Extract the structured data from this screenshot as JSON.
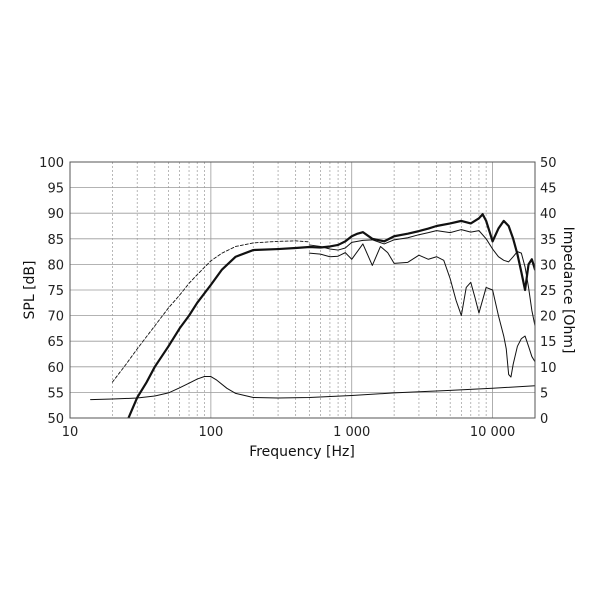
{
  "chart_data": {
    "type": "line",
    "xlabel": "Frequency [Hz]",
    "ylabel": "SPL [dB]",
    "y2label": "Impedance [Ohm]",
    "x_scale": "log",
    "xlim": [
      10,
      20000
    ],
    "ylim": [
      50,
      100
    ],
    "y2lim": [
      0,
      50
    ],
    "grid": true,
    "x_ticks": [
      {
        "value": 10,
        "label": "10"
      },
      {
        "value": 100,
        "label": "100"
      },
      {
        "value": 1000,
        "label": "1 000"
      },
      {
        "value": 10000,
        "label": "10 000"
      }
    ],
    "y_ticks": [
      "50",
      "55",
      "60",
      "65",
      "70",
      "75",
      "80",
      "85",
      "90",
      "95",
      "100"
    ],
    "y2_ticks": [
      "0",
      "5",
      "10",
      "15",
      "20",
      "25",
      "30",
      "35",
      "40",
      "45",
      "50"
    ],
    "series": [
      {
        "style": "dashed",
        "axis": "left",
        "x": [
          20,
          25,
          30,
          40,
          50,
          60,
          70,
          80,
          100,
          120,
          150,
          200,
          300,
          400,
          500
        ],
        "y": [
          57,
          60.5,
          63.5,
          68,
          71.5,
          74,
          76.3,
          78,
          80.7,
          82.2,
          83.5,
          84.2,
          84.5,
          84.6,
          84.4
        ]
      },
      {
        "style": "bold",
        "axis": "left",
        "x": [
          26,
          30,
          35,
          40,
          50,
          60,
          70,
          80,
          100,
          120,
          150,
          200,
          300,
          400,
          500,
          600,
          700,
          800,
          900,
          1000,
          1100,
          1200,
          1400,
          1700,
          2000,
          2500,
          3000,
          3500,
          4000,
          5000,
          6000,
          7000,
          8000,
          8500,
          9000,
          10000,
          11000,
          12000,
          13000,
          14000,
          15000,
          16000,
          17000,
          18000,
          19000,
          20000
        ],
        "y": [
          50,
          54,
          57,
          60,
          64,
          67.5,
          70,
          72.5,
          76,
          79,
          81.5,
          82.8,
          83,
          83.2,
          83.4,
          83.3,
          83.5,
          83.8,
          84.5,
          85.5,
          86,
          86.3,
          85,
          84.5,
          85.5,
          86,
          86.5,
          87,
          87.5,
          88,
          88.5,
          88,
          89,
          89.8,
          88.5,
          84.5,
          87,
          88.5,
          87.5,
          85,
          82,
          78.5,
          75,
          80,
          81,
          79
        ]
      },
      {
        "style": "thin",
        "axis": "left",
        "x": [
          500,
          600,
          700,
          800,
          900,
          1000,
          1200,
          1400,
          1700,
          2000,
          2500,
          3000,
          3500,
          4000,
          5000,
          6000,
          7000,
          8000,
          9000,
          10000,
          11000,
          12000,
          13000,
          14000,
          15000,
          16000,
          17000,
          18000,
          19000,
          20000
        ],
        "y": [
          83.8,
          83.5,
          83,
          82.8,
          83.2,
          84.3,
          84.7,
          84.8,
          84,
          84.8,
          85.2,
          85.8,
          86.2,
          86.6,
          86.2,
          86.8,
          86.3,
          86.6,
          85,
          83,
          81.5,
          80.8,
          80.5,
          81.5,
          82.5,
          82.2,
          79.5,
          75.5,
          71,
          68
        ]
      },
      {
        "style": "thin",
        "axis": "left",
        "x": [
          500,
          600,
          700,
          800,
          900,
          1000,
          1200,
          1400,
          1600,
          1800,
          2000,
          2500,
          3000,
          3500,
          4000,
          4500,
          5000,
          5500,
          6000,
          6500,
          7000,
          7500,
          8000,
          9000,
          10000,
          11000,
          12000,
          12500,
          13000,
          13500,
          14000,
          15000,
          16000,
          17000,
          18000,
          19000,
          20000
        ],
        "y": [
          82.2,
          82,
          81.5,
          81.6,
          82.3,
          81,
          84,
          79.8,
          83.5,
          82.3,
          80.2,
          80.4,
          81.8,
          81,
          81.5,
          80.8,
          77.2,
          73,
          70,
          75.5,
          76.5,
          73.5,
          70.5,
          75.5,
          75,
          70,
          66,
          63.5,
          58.5,
          58,
          60.5,
          64,
          65.5,
          66,
          64,
          62,
          61
        ]
      },
      {
        "style": "thin",
        "axis": "right",
        "x": [
          14,
          20,
          30,
          40,
          50,
          60,
          70,
          80,
          90,
          100,
          110,
          130,
          150,
          200,
          300,
          500,
          1000,
          2000,
          5000,
          10000,
          20000
        ],
        "y": [
          3.6,
          3.7,
          3.9,
          4.3,
          4.9,
          5.9,
          6.8,
          7.6,
          8.1,
          8.1,
          7.4,
          5.8,
          4.8,
          4.0,
          3.9,
          4.0,
          4.4,
          4.9,
          5.4,
          5.8,
          6.3
        ]
      }
    ]
  }
}
